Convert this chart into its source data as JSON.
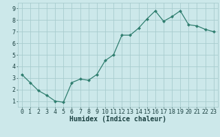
{
  "x": [
    0,
    1,
    2,
    3,
    4,
    5,
    6,
    7,
    8,
    9,
    10,
    11,
    12,
    13,
    14,
    15,
    16,
    17,
    18,
    19,
    20,
    21,
    22,
    23
  ],
  "y": [
    3.3,
    2.6,
    1.9,
    1.5,
    1.0,
    0.9,
    2.6,
    2.9,
    2.8,
    3.3,
    4.5,
    5.0,
    6.7,
    6.7,
    7.3,
    8.1,
    8.8,
    7.9,
    8.3,
    8.8,
    7.6,
    7.5,
    7.2,
    7.0
  ],
  "line_color": "#2e7d6e",
  "marker": "D",
  "marker_size": 2.2,
  "bg_color": "#cce8ea",
  "grid_color": "#a8ccce",
  "xlabel": "Humidex (Indice chaleur)",
  "xlim": [
    -0.5,
    23.5
  ],
  "ylim": [
    0.5,
    9.5
  ],
  "yticks": [
    1,
    2,
    3,
    4,
    5,
    6,
    7,
    8,
    9
  ],
  "xticks": [
    0,
    1,
    2,
    3,
    4,
    5,
    6,
    7,
    8,
    9,
    10,
    11,
    12,
    13,
    14,
    15,
    16,
    17,
    18,
    19,
    20,
    21,
    22,
    23
  ],
  "font_color": "#1a4040",
  "label_fontsize": 7,
  "tick_fontsize": 6
}
